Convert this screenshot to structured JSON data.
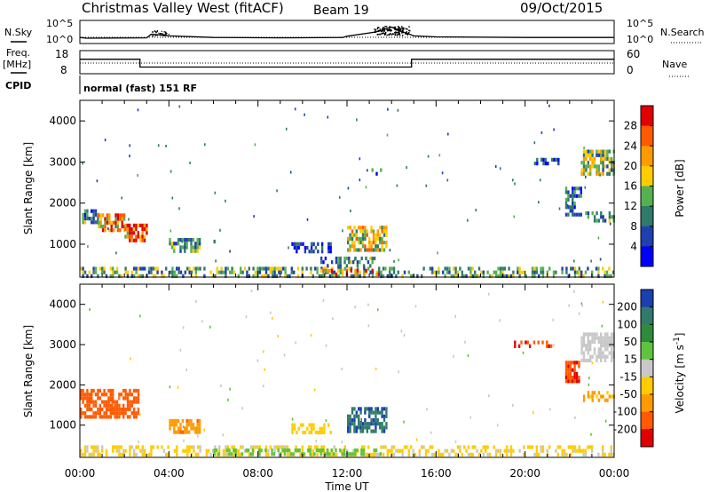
{
  "header": {
    "station": "Christmas Valley West (fitACF)",
    "beam": "Beam 19",
    "date": "09/Oct/2015"
  },
  "side_labels": {
    "nsky": "N.Sky",
    "nsearch": "N.Search",
    "freq_top": "Freq.",
    "freq_unit": "[MHz]",
    "nave": "Nave",
    "cpid": "CPID",
    "cpid_value": "normal (fast) 151 RF"
  },
  "noise_ticks": [
    "10^5",
    "10^0"
  ],
  "freq_ticks": [
    "18",
    "8"
  ],
  "nave_ticks": [
    "60",
    "0"
  ],
  "chart_data": [
    {
      "type": "line",
      "panel": "noise",
      "x_range_hours": [
        0,
        24
      ],
      "y_ticks": [
        "10^5",
        "10^0"
      ],
      "series": [
        {
          "name": "N.Sky",
          "x": [
            0,
            0.3,
            3,
            3.2,
            3.6,
            4,
            6,
            9,
            11.8,
            12,
            13.3,
            14,
            14.4,
            15,
            16,
            20,
            24
          ],
          "y": [
            0.22,
            0.18,
            0.2,
            0.38,
            0.35,
            0.3,
            0.22,
            0.2,
            0.22,
            0.28,
            0.5,
            0.75,
            0.55,
            0.3,
            0.25,
            0.22,
            0.22
          ]
        }
      ]
    },
    {
      "type": "line",
      "panel": "frequency",
      "x_range_hours": [
        0,
        24
      ],
      "y_ticks_left": [
        "18",
        "8"
      ],
      "y_ticks_right": [
        "60",
        "0"
      ],
      "series": [
        {
          "name": "Freq.",
          "x": [
            0,
            2.7,
            2.7,
            14.9,
            14.9,
            24
          ],
          "y": [
            14.5,
            14.5,
            10.5,
            10.5,
            14.5,
            14.5
          ]
        }
      ]
    },
    {
      "type": "heatmap",
      "panel": "power",
      "xlabel": "",
      "ylabel": "Slant Range [km]",
      "y_ticks": [
        1000,
        2000,
        3000,
        4000
      ],
      "ylim": [
        200,
        4500
      ],
      "x_range_hours": [
        0,
        24
      ],
      "colorbar": {
        "label": "Power [dB]",
        "ticks": [
          28,
          24,
          20,
          16,
          12,
          8,
          4
        ],
        "colors": [
          "#e00000",
          "#ff5a00",
          "#ff9a00",
          "#ffcc00",
          "#56b050",
          "#2f7a6a",
          "#2040b0",
          "#0000ff"
        ]
      },
      "regions": [
        {
          "t0": 0.0,
          "t1": 0.8,
          "r0": 1500,
          "r1": 1850,
          "value": 10
        },
        {
          "t0": 0.8,
          "t1": 2.0,
          "r0": 1300,
          "r1": 1750,
          "value": 22
        },
        {
          "t0": 2.0,
          "t1": 3.0,
          "r0": 1100,
          "r1": 1500,
          "value": 26
        },
        {
          "t0": 4.0,
          "t1": 5.4,
          "r0": 850,
          "r1": 1150,
          "value": 10
        },
        {
          "t0": 6.0,
          "t1": 6.4,
          "r0": 1050,
          "r1": 1200,
          "value": 6
        },
        {
          "t0": 9.5,
          "t1": 11.3,
          "r0": 850,
          "r1": 1050,
          "value": 6
        },
        {
          "t0": 12.0,
          "t1": 13.8,
          "r0": 850,
          "r1": 1450,
          "value": 18
        },
        {
          "t0": 10.8,
          "t1": 13.2,
          "r0": 450,
          "r1": 700,
          "value": 10
        },
        {
          "t0": 0.0,
          "t1": 24.0,
          "r0": 250,
          "r1": 450,
          "value": 12
        },
        {
          "t0": 10.8,
          "t1": 13.5,
          "r0": 260,
          "r1": 400,
          "value": 24
        },
        {
          "t0": 20.4,
          "t1": 21.6,
          "r0": 2950,
          "r1": 3100,
          "value": 6
        },
        {
          "t0": 13.0,
          "t1": 13.5,
          "r0": 2700,
          "r1": 2850,
          "value": 8
        },
        {
          "t0": 22.5,
          "t1": 24.0,
          "r0": 2700,
          "r1": 3300,
          "value": 14
        },
        {
          "t0": 22.6,
          "t1": 24.0,
          "r0": 1550,
          "r1": 1800,
          "value": 10
        },
        {
          "t0": 21.8,
          "t1": 22.5,
          "r0": 1750,
          "r1": 2400,
          "value": 8
        }
      ]
    },
    {
      "type": "heatmap",
      "panel": "velocity",
      "xlabel": "Time UT",
      "ylabel": "Slant Range [km]",
      "y_ticks": [
        1000,
        2000,
        3000,
        4000
      ],
      "ylim": [
        200,
        4500
      ],
      "x_ticks": [
        "00:00",
        "04:00",
        "08:00",
        "12:00",
        "16:00",
        "20:00",
        "00:00"
      ],
      "x_range_hours": [
        0,
        24
      ],
      "colorbar": {
        "label": "Velocity [m s^-1]",
        "ticks": [
          200,
          100,
          50,
          15,
          -15,
          -50,
          -100,
          -200
        ],
        "colors": [
          "#1b3fb0",
          "#2f7a6a",
          "#2e8b3e",
          "#5ec43f",
          "#c8c8c8",
          "#ffcc00",
          "#ff9a00",
          "#ff5a00",
          "#e00000"
        ]
      },
      "regions": [
        {
          "t0": 0.0,
          "t1": 2.6,
          "r0": 1200,
          "r1": 1900,
          "value": -150
        },
        {
          "t0": 4.0,
          "t1": 5.4,
          "r0": 850,
          "r1": 1150,
          "value": -80
        },
        {
          "t0": 12.0,
          "t1": 13.8,
          "r0": 850,
          "r1": 1450,
          "value": 180
        },
        {
          "t0": 9.5,
          "t1": 11.3,
          "r0": 850,
          "r1": 1050,
          "value": -30
        },
        {
          "t0": 0.0,
          "t1": 24.0,
          "r0": 250,
          "r1": 500,
          "value": -20
        },
        {
          "t0": 6.0,
          "t1": 13.5,
          "r0": 260,
          "r1": 420,
          "value": 30
        },
        {
          "t0": 19.5,
          "t1": 21.2,
          "r0": 2950,
          "r1": 3100,
          "value": -180
        },
        {
          "t0": 22.5,
          "t1": 24.0,
          "r0": 2600,
          "r1": 3300,
          "value": 0
        },
        {
          "t0": 22.6,
          "t1": 24.0,
          "r0": 1600,
          "r1": 1850,
          "value": -60
        },
        {
          "t0": 21.8,
          "t1": 22.4,
          "r0": 2100,
          "r1": 2600,
          "value": -180
        }
      ]
    }
  ]
}
